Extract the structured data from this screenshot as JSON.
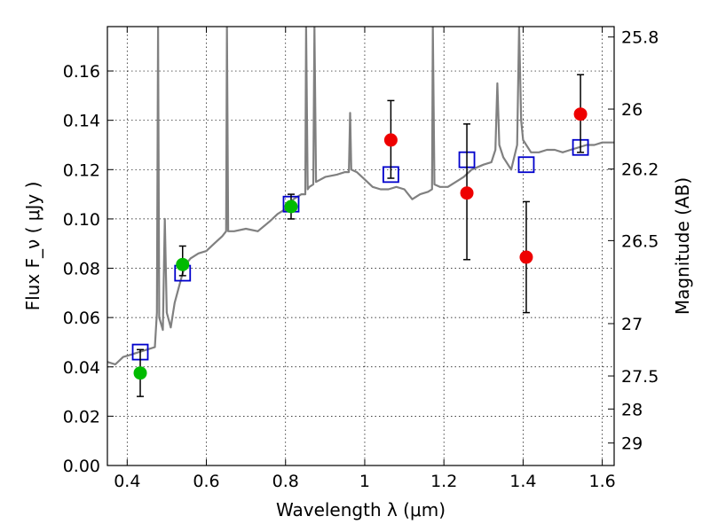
{
  "chart_data": {
    "type": "scatter",
    "xlabel": "Wavelength  λ (μm)",
    "ylabel": "Flux  F_ν  ( μJy )",
    "ylabel_right": "Magnitude (AB)",
    "xlim": [
      0.35,
      1.63
    ],
    "ylim": [
      0.0,
      0.178
    ],
    "grid": true,
    "x_ticks": [
      0.4,
      0.6,
      0.8,
      1.0,
      1.2,
      1.4,
      1.6
    ],
    "x_tick_labels": [
      "0.4",
      "0.6",
      "0.8",
      "1",
      "1.2",
      "1.4",
      "1.6"
    ],
    "y_ticks": [
      0.0,
      0.02,
      0.04,
      0.06,
      0.08,
      0.1,
      0.12,
      0.14,
      0.16
    ],
    "y_tick_labels": [
      "0.00",
      "0.02",
      "0.04",
      "0.06",
      "0.08",
      "0.10",
      "0.12",
      "0.14",
      "0.16"
    ],
    "right_ticks": [
      {
        "mag": 25.8,
        "label": "25.8"
      },
      {
        "mag": 26.0,
        "label": "26"
      },
      {
        "mag": 26.2,
        "label": "26.2"
      },
      {
        "mag": 26.5,
        "label": "26.5"
      },
      {
        "mag": 27.0,
        "label": "27"
      },
      {
        "mag": 27.5,
        "label": "27.5"
      },
      {
        "mag": 28.0,
        "label": "28"
      },
      {
        "mag": 29.0,
        "label": "29"
      }
    ],
    "series": [
      {
        "kind": "line",
        "color": "#808080",
        "points": [
          [
            0.35,
            0.042
          ],
          [
            0.37,
            0.041
          ],
          [
            0.39,
            0.044
          ],
          [
            0.41,
            0.045
          ],
          [
            0.43,
            0.046
          ],
          [
            0.45,
            0.047
          ],
          [
            0.47,
            0.048
          ],
          [
            0.475,
            0.062
          ],
          [
            0.478,
            0.178
          ],
          [
            0.481,
            0.06
          ],
          [
            0.49,
            0.055
          ],
          [
            0.495,
            0.1
          ],
          [
            0.5,
            0.062
          ],
          [
            0.51,
            0.056
          ],
          [
            0.52,
            0.066
          ],
          [
            0.53,
            0.072
          ],
          [
            0.54,
            0.078
          ],
          [
            0.55,
            0.082
          ],
          [
            0.56,
            0.084
          ],
          [
            0.58,
            0.086
          ],
          [
            0.6,
            0.087
          ],
          [
            0.62,
            0.09
          ],
          [
            0.64,
            0.093
          ],
          [
            0.65,
            0.095
          ],
          [
            0.652,
            0.178
          ],
          [
            0.655,
            0.095
          ],
          [
            0.67,
            0.095
          ],
          [
            0.7,
            0.096
          ],
          [
            0.73,
            0.095
          ],
          [
            0.76,
            0.099
          ],
          [
            0.78,
            0.102
          ],
          [
            0.8,
            0.104
          ],
          [
            0.82,
            0.108
          ],
          [
            0.84,
            0.11
          ],
          [
            0.85,
            0.11
          ],
          [
            0.852,
            0.178
          ],
          [
            0.856,
            0.112
          ],
          [
            0.86,
            0.113
          ],
          [
            0.87,
            0.114
          ],
          [
            0.873,
            0.178
          ],
          [
            0.877,
            0.115
          ],
          [
            0.9,
            0.117
          ],
          [
            0.93,
            0.118
          ],
          [
            0.95,
            0.119
          ],
          [
            0.96,
            0.119
          ],
          [
            0.963,
            0.143
          ],
          [
            0.966,
            0.12
          ],
          [
            0.98,
            0.119
          ],
          [
            1.0,
            0.116
          ],
          [
            1.02,
            0.113
          ],
          [
            1.04,
            0.112
          ],
          [
            1.06,
            0.112
          ],
          [
            1.08,
            0.113
          ],
          [
            1.1,
            0.112
          ],
          [
            1.12,
            0.108
          ],
          [
            1.14,
            0.11
          ],
          [
            1.16,
            0.111
          ],
          [
            1.17,
            0.112
          ],
          [
            1.172,
            0.178
          ],
          [
            1.176,
            0.114
          ],
          [
            1.19,
            0.113
          ],
          [
            1.21,
            0.113
          ],
          [
            1.23,
            0.115
          ],
          [
            1.25,
            0.117
          ],
          [
            1.27,
            0.12
          ],
          [
            1.3,
            0.122
          ],
          [
            1.32,
            0.123
          ],
          [
            1.33,
            0.128
          ],
          [
            1.335,
            0.155
          ],
          [
            1.34,
            0.13
          ],
          [
            1.35,
            0.125
          ],
          [
            1.37,
            0.12
          ],
          [
            1.385,
            0.13
          ],
          [
            1.39,
            0.178
          ],
          [
            1.395,
            0.14
          ],
          [
            1.4,
            0.132
          ],
          [
            1.42,
            0.127
          ],
          [
            1.44,
            0.127
          ],
          [
            1.46,
            0.128
          ],
          [
            1.48,
            0.128
          ],
          [
            1.5,
            0.127
          ],
          [
            1.52,
            0.128
          ],
          [
            1.54,
            0.129
          ],
          [
            1.56,
            0.13
          ],
          [
            1.58,
            0.13
          ],
          [
            1.6,
            0.131
          ],
          [
            1.63,
            0.131
          ]
        ]
      },
      {
        "kind": "open-square",
        "color": "#0000cc",
        "points": [
          [
            0.433,
            0.046
          ],
          [
            0.54,
            0.078
          ],
          [
            0.814,
            0.106
          ],
          [
            1.066,
            0.118
          ],
          [
            1.258,
            0.124
          ],
          [
            1.408,
            0.122
          ],
          [
            1.545,
            0.129
          ]
        ]
      },
      {
        "kind": "dot",
        "color": "#00bb00",
        "points": [
          {
            "x": 0.433,
            "y": 0.0375,
            "lo": 0.028,
            "hi": 0.047
          },
          {
            "x": 0.54,
            "y": 0.0815,
            "lo": 0.077,
            "hi": 0.089
          },
          {
            "x": 0.814,
            "y": 0.105,
            "lo": 0.1,
            "hi": 0.11
          }
        ]
      },
      {
        "kind": "dot",
        "color": "#ee0000",
        "points": [
          {
            "x": 1.066,
            "y": 0.132,
            "lo": 0.1165,
            "hi": 0.148
          },
          {
            "x": 1.258,
            "y": 0.1105,
            "lo": 0.0835,
            "hi": 0.1385
          },
          {
            "x": 1.408,
            "y": 0.0845,
            "lo": 0.062,
            "hi": 0.107
          },
          {
            "x": 1.545,
            "y": 0.1425,
            "lo": 0.127,
            "hi": 0.1585
          }
        ]
      }
    ]
  }
}
